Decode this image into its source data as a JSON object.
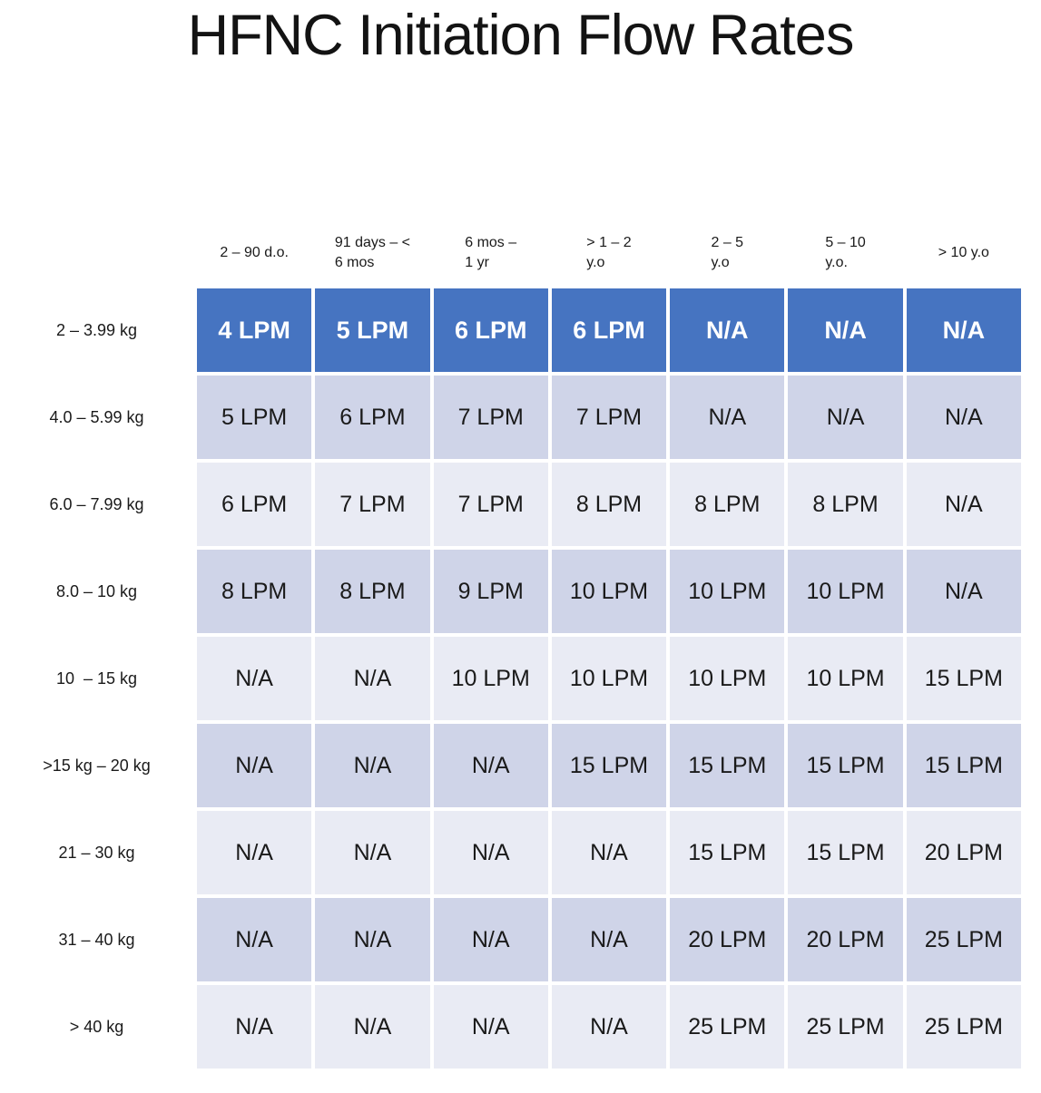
{
  "title": "HFNC Initiation Flow Rates",
  "table": {
    "col_headers": [
      "2 – 90 d.o.",
      "91 days – <\n6 mos",
      "6 mos –\n1 yr",
      "> 1 – 2\ny.o",
      "2 – 5\ny.o",
      "5 – 10\ny.o.",
      "> 10 y.o"
    ],
    "rows": [
      {
        "label": "2 – 3.99 kg",
        "style": "dark",
        "cells": [
          "4 LPM",
          "5 LPM",
          "6 LPM",
          "6 LPM",
          "N/A",
          "N/A",
          "N/A"
        ]
      },
      {
        "label": "4.0 – 5.99 kg",
        "style": "mid",
        "cells": [
          "5 LPM",
          "6 LPM",
          "7 LPM",
          "7 LPM",
          "N/A",
          "N/A",
          "N/A"
        ]
      },
      {
        "label": "6.0 – 7.99 kg",
        "style": "light",
        "cells": [
          "6 LPM",
          "7 LPM",
          "7 LPM",
          "8 LPM",
          "8 LPM",
          "8 LPM",
          "N/A"
        ]
      },
      {
        "label": "8.0 – 10 kg",
        "style": "mid",
        "cells": [
          "8 LPM",
          "8 LPM",
          "9 LPM",
          "10 LPM",
          "10 LPM",
          "10 LPM",
          "N/A"
        ]
      },
      {
        "label": "10  – 15 kg",
        "style": "light",
        "cells": [
          "N/A",
          "N/A",
          "10 LPM",
          "10 LPM",
          "10 LPM",
          "10 LPM",
          "15 LPM"
        ]
      },
      {
        "label": ">15 kg – 20 kg",
        "style": "mid",
        "cells": [
          "N/A",
          "N/A",
          "N/A",
          "15 LPM",
          "15 LPM",
          "15 LPM",
          "15 LPM"
        ]
      },
      {
        "label": "21 – 30 kg",
        "style": "light",
        "cells": [
          "N/A",
          "N/A",
          "N/A",
          "N/A",
          "15 LPM",
          "15 LPM",
          "20 LPM"
        ]
      },
      {
        "label": "31 – 40 kg",
        "style": "mid",
        "cells": [
          "N/A",
          "N/A",
          "N/A",
          "N/A",
          "20 LPM",
          "20 LPM",
          "25 LPM"
        ]
      },
      {
        "label": "> 40 kg",
        "style": "light",
        "cells": [
          "N/A",
          "N/A",
          "N/A",
          "N/A",
          "25 LPM",
          "25 LPM",
          "25 LPM"
        ]
      }
    ]
  },
  "colors": {
    "first_row_blue": "#4674C1",
    "row_lavender": "#CFD4E8",
    "row_light": "#E9EBF4",
    "text_dark": "#1A1A1A",
    "text_white": "#FFFFFF",
    "grid_gap": "#FFFFFF"
  }
}
